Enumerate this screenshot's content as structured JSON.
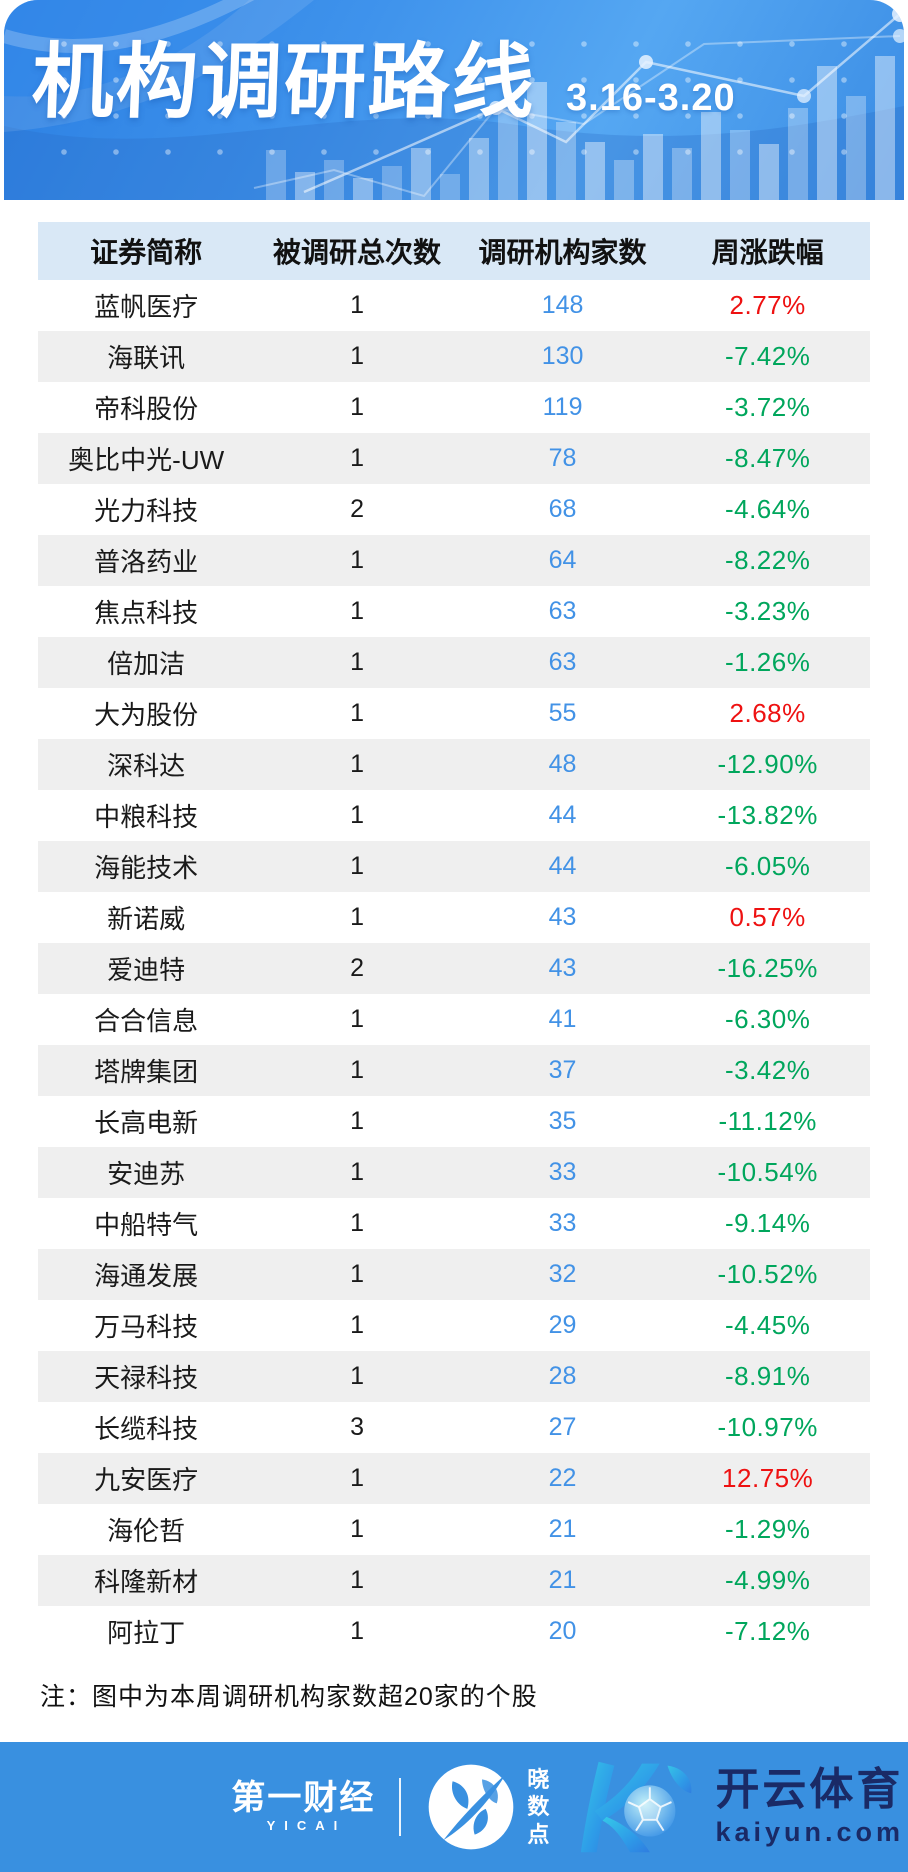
{
  "banner": {
    "title": "机构调研路线",
    "date_range": "3.16-3.20"
  },
  "chart_data": {
    "type": "table",
    "title": "机构调研路线",
    "subtitle": "3.16-3.20",
    "columns": [
      "证券简称",
      "被调研总次数",
      "调研机构家数",
      "周涨跌幅"
    ],
    "rows": [
      {
        "name": "蓝帆医疗",
        "times": "1",
        "orgs": "148",
        "change": "2.77%",
        "direction": "up"
      },
      {
        "name": "海联讯",
        "times": "1",
        "orgs": "130",
        "change": "-7.42%",
        "direction": "down"
      },
      {
        "name": "帝科股份",
        "times": "1",
        "orgs": "119",
        "change": "-3.72%",
        "direction": "down"
      },
      {
        "name": "奥比中光-UW",
        "times": "1",
        "orgs": "78",
        "change": "-8.47%",
        "direction": "down"
      },
      {
        "name": "光力科技",
        "times": "2",
        "orgs": "68",
        "change": "-4.64%",
        "direction": "down"
      },
      {
        "name": "普洛药业",
        "times": "1",
        "orgs": "64",
        "change": "-8.22%",
        "direction": "down"
      },
      {
        "name": "焦点科技",
        "times": "1",
        "orgs": "63",
        "change": "-3.23%",
        "direction": "down"
      },
      {
        "name": "倍加洁",
        "times": "1",
        "orgs": "63",
        "change": "-1.26%",
        "direction": "down"
      },
      {
        "name": "大为股份",
        "times": "1",
        "orgs": "55",
        "change": "2.68%",
        "direction": "up"
      },
      {
        "name": "深科达",
        "times": "1",
        "orgs": "48",
        "change": "-12.90%",
        "direction": "down"
      },
      {
        "name": "中粮科技",
        "times": "1",
        "orgs": "44",
        "change": "-13.82%",
        "direction": "down"
      },
      {
        "name": "海能技术",
        "times": "1",
        "orgs": "44",
        "change": "-6.05%",
        "direction": "down"
      },
      {
        "name": "新诺威",
        "times": "1",
        "orgs": "43",
        "change": "0.57%",
        "direction": "up"
      },
      {
        "name": "爱迪特",
        "times": "2",
        "orgs": "43",
        "change": "-16.25%",
        "direction": "down"
      },
      {
        "name": "合合信息",
        "times": "1",
        "orgs": "41",
        "change": "-6.30%",
        "direction": "down"
      },
      {
        "name": "塔牌集团",
        "times": "1",
        "orgs": "37",
        "change": "-3.42%",
        "direction": "down"
      },
      {
        "name": "长高电新",
        "times": "1",
        "orgs": "35",
        "change": "-11.12%",
        "direction": "down"
      },
      {
        "name": "安迪苏",
        "times": "1",
        "orgs": "33",
        "change": "-10.54%",
        "direction": "down"
      },
      {
        "name": "中船特气",
        "times": "1",
        "orgs": "33",
        "change": "-9.14%",
        "direction": "down"
      },
      {
        "name": "海通发展",
        "times": "1",
        "orgs": "32",
        "change": "-10.52%",
        "direction": "down"
      },
      {
        "name": "万马科技",
        "times": "1",
        "orgs": "29",
        "change": "-4.45%",
        "direction": "down"
      },
      {
        "name": "天禄科技",
        "times": "1",
        "orgs": "28",
        "change": "-8.91%",
        "direction": "down"
      },
      {
        "name": "长缆科技",
        "times": "3",
        "orgs": "27",
        "change": "-10.97%",
        "direction": "down"
      },
      {
        "name": "九安医疗",
        "times": "1",
        "orgs": "22",
        "change": "12.75%",
        "direction": "up"
      },
      {
        "name": "海伦哲",
        "times": "1",
        "orgs": "21",
        "change": "-1.29%",
        "direction": "down"
      },
      {
        "name": "科隆新材",
        "times": "1",
        "orgs": "21",
        "change": "-4.99%",
        "direction": "down"
      },
      {
        "name": "阿拉丁",
        "times": "1",
        "orgs": "20",
        "change": "-7.12%",
        "direction": "down"
      }
    ]
  },
  "note": "注：图中为本周调研机构家数超20家的个股",
  "footer": {
    "yicai_label": "第一财经",
    "yicai_sub": "YICAI",
    "xiaoshudian_chars": [
      "晓",
      "数",
      "点"
    ],
    "kaiyun_label": "开云体育",
    "kaiyun_domain": "kaiyun.com"
  },
  "colors": {
    "up_red": "#ee1111",
    "down_green": "#00a65c",
    "count_blue": "#4292e6",
    "footer_blue": "#3990e0",
    "header_bg": "#d9e8f6",
    "stripe_gray": "#efefef"
  }
}
